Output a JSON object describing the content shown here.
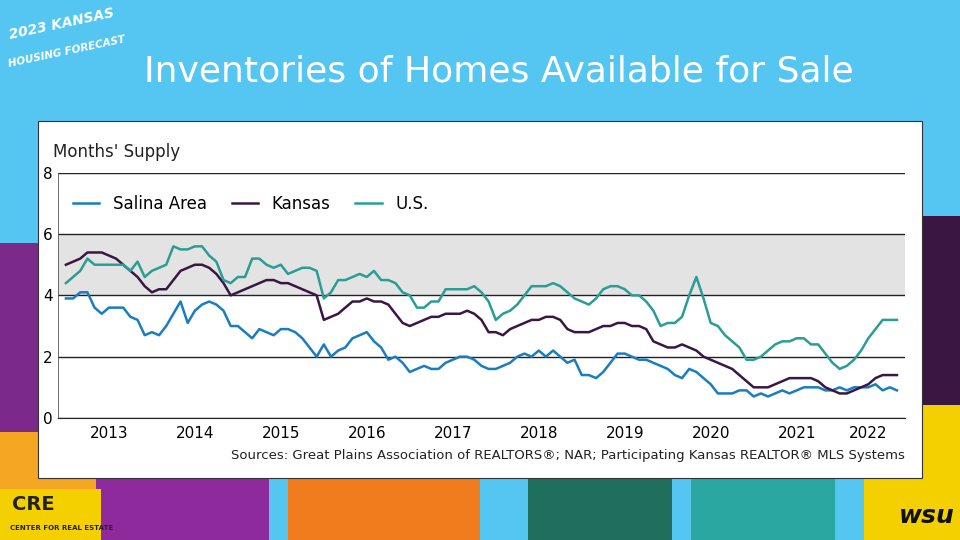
{
  "header": {
    "logo": [
      "2023 KANSAS",
      "HOUSING FORECAST"
    ],
    "title": "Inventories of Homes Available for Sale"
  },
  "chart_data": {
    "type": "line",
    "y_label": "Months' Supply",
    "source": "Sources: Great Plains Association of REALTORS®; NAR; Participating Kansas REALTOR® MLS Systems",
    "categories": [
      null,
      null,
      null,
      null,
      null,
      null,
      "2013",
      null,
      null,
      null,
      null,
      null,
      null,
      null,
      null,
      null,
      null,
      null,
      "2014",
      null,
      null,
      null,
      null,
      null,
      null,
      null,
      null,
      null,
      null,
      null,
      "2015",
      null,
      null,
      null,
      null,
      null,
      null,
      null,
      null,
      null,
      null,
      null,
      "2016",
      null,
      null,
      null,
      null,
      null,
      null,
      null,
      null,
      null,
      null,
      null,
      "2017",
      null,
      null,
      null,
      null,
      null,
      null,
      null,
      null,
      null,
      null,
      null,
      "2018",
      null,
      null,
      null,
      null,
      null,
      null,
      null,
      null,
      null,
      null,
      null,
      "2019",
      null,
      null,
      null,
      null,
      null,
      null,
      null,
      null,
      null,
      null,
      null,
      "2020",
      null,
      null,
      null,
      null,
      null,
      null,
      null,
      null,
      null,
      null,
      null,
      "2021",
      null,
      null,
      null,
      null,
      null,
      null,
      null,
      null,
      null,
      "2022",
      null,
      null,
      null,
      null
    ],
    "series": [
      {
        "name": "Salina Area",
        "color": "#1a7cc1",
        "values": [
          3.9,
          3.9,
          4.1,
          4.1,
          3.6,
          3.4,
          3.6,
          3.6,
          3.6,
          3.3,
          3.2,
          2.7,
          2.8,
          2.7,
          3.0,
          3.4,
          3.8,
          3.1,
          3.5,
          3.7,
          3.8,
          3.7,
          3.5,
          3.0,
          3.0,
          2.8,
          2.6,
          2.9,
          2.8,
          2.7,
          2.9,
          2.9,
          2.8,
          2.6,
          2.3,
          2.0,
          2.4,
          2.0,
          2.2,
          2.3,
          2.6,
          2.7,
          2.8,
          2.5,
          2.3,
          1.9,
          2.0,
          1.8,
          1.5,
          1.6,
          1.7,
          1.6,
          1.6,
          1.8,
          1.9,
          2.0,
          2.0,
          1.9,
          1.7,
          1.6,
          1.6,
          1.7,
          1.8,
          2.0,
          2.1,
          2.0,
          2.2,
          2.0,
          2.2,
          2.0,
          1.8,
          1.9,
          1.4,
          1.4,
          1.3,
          1.5,
          1.8,
          2.1,
          2.1,
          2.0,
          1.9,
          1.9,
          1.8,
          1.7,
          1.6,
          1.4,
          1.3,
          1.6,
          1.5,
          1.3,
          1.1,
          0.8,
          0.8,
          0.8,
          0.9,
          0.9,
          0.7,
          0.8,
          0.7,
          0.8,
          0.9,
          0.8,
          0.9,
          1.0,
          1.0,
          1.0,
          0.9,
          0.9,
          1.0,
          0.9,
          1.0,
          1.0,
          1.0,
          1.1,
          0.9,
          1.0,
          0.9
        ]
      },
      {
        "name": "Kansas",
        "color": "#3a1743",
        "values": [
          5.0,
          5.1,
          5.2,
          5.4,
          5.4,
          5.4,
          5.3,
          5.2,
          5.0,
          4.8,
          4.6,
          4.3,
          4.1,
          4.2,
          4.2,
          4.5,
          4.8,
          4.9,
          5.0,
          5.0,
          4.9,
          4.7,
          4.4,
          4.0,
          4.1,
          4.2,
          4.3,
          4.4,
          4.5,
          4.5,
          4.4,
          4.4,
          4.3,
          4.2,
          4.1,
          4.0,
          3.2,
          3.3,
          3.4,
          3.6,
          3.8,
          3.8,
          3.9,
          3.8,
          3.8,
          3.7,
          3.4,
          3.1,
          3.0,
          3.1,
          3.2,
          3.3,
          3.3,
          3.4,
          3.4,
          3.4,
          3.5,
          3.4,
          3.2,
          2.8,
          2.8,
          2.7,
          2.9,
          3.0,
          3.1,
          3.2,
          3.2,
          3.3,
          3.3,
          3.2,
          2.9,
          2.8,
          2.8,
          2.8,
          2.9,
          3.0,
          3.0,
          3.1,
          3.1,
          3.0,
          3.0,
          2.9,
          2.5,
          2.4,
          2.3,
          2.3,
          2.4,
          2.3,
          2.2,
          2.0,
          1.9,
          1.8,
          1.7,
          1.6,
          1.4,
          1.2,
          1.0,
          1.0,
          1.0,
          1.1,
          1.2,
          1.3,
          1.3,
          1.3,
          1.3,
          1.2,
          1.0,
          0.9,
          0.8,
          0.8,
          0.9,
          1.0,
          1.1,
          1.3,
          1.4,
          1.4,
          1.4
        ]
      },
      {
        "name": "U.S.",
        "color": "#2a9d95",
        "values": [
          4.4,
          4.6,
          4.8,
          5.2,
          5.0,
          5.0,
          5.0,
          5.0,
          5.0,
          4.8,
          5.1,
          4.6,
          4.8,
          4.9,
          5.0,
          5.6,
          5.5,
          5.5,
          5.6,
          5.6,
          5.3,
          5.1,
          4.5,
          4.4,
          4.6,
          4.6,
          5.2,
          5.2,
          5.0,
          4.9,
          5.0,
          4.7,
          4.8,
          4.9,
          4.9,
          4.8,
          3.9,
          4.1,
          4.5,
          4.5,
          4.6,
          4.7,
          4.6,
          4.8,
          4.5,
          4.5,
          4.4,
          4.1,
          4.0,
          3.6,
          3.6,
          3.8,
          3.8,
          4.2,
          4.2,
          4.2,
          4.2,
          4.3,
          4.1,
          3.8,
          3.2,
          3.4,
          3.5,
          3.7,
          4.0,
          4.3,
          4.3,
          4.3,
          4.4,
          4.3,
          4.1,
          3.9,
          3.8,
          3.7,
          3.9,
          4.2,
          4.3,
          4.3,
          4.2,
          4.0,
          4.0,
          3.8,
          3.5,
          3.0,
          3.1,
          3.1,
          3.3,
          4.0,
          4.6,
          3.9,
          3.1,
          3.0,
          2.7,
          2.5,
          2.3,
          1.9,
          1.9,
          2.0,
          2.2,
          2.4,
          2.5,
          2.5,
          2.6,
          2.6,
          2.4,
          2.4,
          2.1,
          1.8,
          1.6,
          1.7,
          1.9,
          2.2,
          2.6,
          2.9,
          3.2,
          3.2,
          3.2
        ]
      }
    ],
    "shaded_range": [
      4,
      6
    ],
    "ylim": [
      0,
      8
    ],
    "yticks": [
      0,
      2,
      4,
      6,
      8
    ],
    "grid": true,
    "legend": "upper left"
  },
  "footer": {
    "logo_left": [
      "CRE",
      "CENTER FOR REAL ESTATE"
    ],
    "logo_right": "wsu"
  }
}
